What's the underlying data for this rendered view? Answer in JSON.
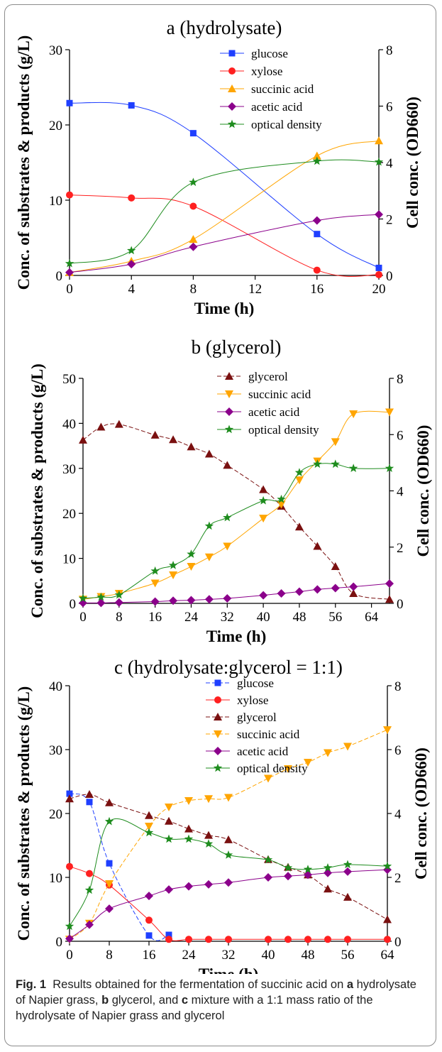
{
  "caption": {
    "label": "Fig. 1",
    "text_parts": [
      "Results obtained for the fermentation of succinic acid on ",
      "a",
      " hydrolysate of Napier grass, ",
      "b",
      " glycerol, and ",
      "c",
      " mixture with a 1:1 mass ratio of the hydrolysate of Napier grass and glycerol"
    ]
  },
  "colors": {
    "glucose": "#1f3fff",
    "xylose": "#ff2020",
    "glycerol": "#7a1010",
    "succinic acid": "#ffa500",
    "acetic acid": "#8b008b",
    "optical density": "#1e8c1e"
  },
  "chart_data": [
    {
      "type": "line",
      "title": "a (hydrolysate)",
      "xlabel": "Time (h)",
      "ylabel": "Conc. of substrates & products (g/L)",
      "y2label": "Cell conc. (OD660)",
      "xlim": [
        0,
        20
      ],
      "ylim": [
        0,
        30
      ],
      "y2lim": [
        0,
        8
      ],
      "xticks": [
        0,
        4,
        8,
        12,
        16,
        20
      ],
      "yticks": [
        0,
        10,
        20,
        30
      ],
      "y2ticks": [
        0,
        2,
        4,
        6,
        8
      ],
      "legend": "top-center",
      "series": [
        {
          "name": "glucose",
          "marker": "square",
          "axis": "left",
          "dashed": false,
          "x": [
            0,
            4,
            8,
            16,
            20
          ],
          "y": [
            22.9,
            22.6,
            18.9,
            5.5,
            1.0
          ]
        },
        {
          "name": "xylose",
          "marker": "circle",
          "axis": "left",
          "dashed": false,
          "x": [
            0,
            4,
            8,
            16,
            20
          ],
          "y": [
            10.7,
            10.3,
            9.2,
            0.7,
            0.1
          ]
        },
        {
          "name": "succinic acid",
          "marker": "triangle-up",
          "axis": "left",
          "dashed": false,
          "x": [
            0,
            4,
            8,
            16,
            20
          ],
          "y": [
            0.4,
            1.9,
            4.8,
            15.9,
            17.9
          ]
        },
        {
          "name": "acetic acid",
          "marker": "diamond",
          "axis": "left",
          "dashed": false,
          "x": [
            0,
            4,
            8,
            16,
            20
          ],
          "y": [
            0.4,
            1.5,
            3.8,
            7.3,
            8.1
          ]
        },
        {
          "name": "optical density",
          "marker": "star",
          "axis": "right",
          "dashed": false,
          "x": [
            0,
            4,
            8,
            16,
            20
          ],
          "y": [
            0.42,
            0.88,
            3.3,
            4.05,
            4.02
          ]
        }
      ]
    },
    {
      "type": "line",
      "title": "b (glycerol)",
      "xlabel": "Time (h)",
      "ylabel": "Conc. of substrates & products (g/L)",
      "y2label": "Cell conc. (OD660)",
      "xlim": [
        0,
        68
      ],
      "ylim": [
        0,
        50
      ],
      "y2lim": [
        0,
        8
      ],
      "xticks": [
        0,
        8,
        16,
        24,
        32,
        40,
        48,
        56,
        64
      ],
      "yticks": [
        0,
        10,
        20,
        30,
        40,
        50
      ],
      "y2ticks": [
        0,
        2,
        4,
        6,
        8
      ],
      "legend": "top-center",
      "series": [
        {
          "name": "glycerol",
          "marker": "triangle-up",
          "axis": "left",
          "dashed": true,
          "x": [
            0,
            4,
            8,
            16,
            20,
            24,
            28,
            32,
            40,
            44,
            48,
            52,
            56,
            60,
            68
          ],
          "y": [
            36.3,
            39.2,
            39.8,
            37.4,
            36.4,
            34.8,
            33.2,
            30.7,
            25.3,
            21.6,
            17.0,
            12.7,
            8.2,
            2.2,
            0.9
          ]
        },
        {
          "name": "succinic acid",
          "marker": "triangle-down",
          "axis": "left",
          "dashed": false,
          "x": [
            0,
            4,
            8,
            16,
            20,
            24,
            28,
            32,
            40,
            44,
            48,
            52,
            56,
            60,
            68
          ],
          "y": [
            0.9,
            1.5,
            2.2,
            4.5,
            6.3,
            8.2,
            10.3,
            12.7,
            18.9,
            22.0,
            27.4,
            31.6,
            35.9,
            42.1,
            42.5
          ]
        },
        {
          "name": "acetic acid",
          "marker": "diamond",
          "axis": "left",
          "dashed": false,
          "x": [
            0,
            4,
            8,
            16,
            20,
            24,
            28,
            32,
            40,
            44,
            48,
            52,
            56,
            60,
            68
          ],
          "y": [
            0.1,
            0.1,
            0.2,
            0.4,
            0.6,
            0.7,
            0.9,
            1.1,
            1.8,
            2.2,
            2.6,
            3.1,
            3.4,
            3.7,
            4.4
          ]
        },
        {
          "name": "optical density",
          "marker": "star",
          "axis": "right",
          "dashed": false,
          "x": [
            0,
            4,
            8,
            16,
            20,
            24,
            28,
            32,
            40,
            44,
            48,
            52,
            56,
            60,
            68
          ],
          "y": [
            0.18,
            0.22,
            0.3,
            1.15,
            1.35,
            1.75,
            2.75,
            3.05,
            3.65,
            3.7,
            4.65,
            4.95,
            4.95,
            4.8,
            4.8
          ]
        }
      ]
    },
    {
      "type": "line",
      "title": "c (hydrolysate:glycerol = 1:1)",
      "xlabel": "Time (h)",
      "ylabel": "Conc. of substrates & products (g/L)",
      "y2label": "Cell conc. (OD660)",
      "xlim": [
        0,
        64
      ],
      "ylim": [
        0,
        40
      ],
      "y2lim": [
        0,
        8
      ],
      "xticks": [
        0,
        8,
        16,
        24,
        32,
        40,
        48,
        56,
        64
      ],
      "yticks": [
        0,
        10,
        20,
        30,
        40
      ],
      "y2ticks": [
        0,
        2,
        4,
        6,
        8
      ],
      "legend": "top-center",
      "series": [
        {
          "name": "glucose",
          "marker": "square",
          "axis": "left",
          "dashed": true,
          "x": [
            0,
            4,
            8,
            16,
            20
          ],
          "y": [
            23.1,
            21.8,
            12.2,
            0.9,
            1.0
          ]
        },
        {
          "name": "xylose",
          "marker": "circle",
          "axis": "left",
          "dashed": false,
          "x": [
            0,
            4,
            8,
            16,
            20,
            24,
            28,
            32,
            40,
            44,
            48,
            52,
            56,
            64
          ],
          "y": [
            11.7,
            10.6,
            8.8,
            3.3,
            0.3,
            0.3,
            0.3,
            0.3,
            0.3,
            0.3,
            0.3,
            0.3,
            0.3,
            0.3
          ]
        },
        {
          "name": "glycerol",
          "marker": "triangle-up",
          "axis": "left",
          "dashed": true,
          "x": [
            0,
            4,
            8,
            16,
            20,
            24,
            28,
            32,
            40,
            44,
            48,
            52,
            56,
            64
          ],
          "y": [
            22.3,
            23.0,
            21.7,
            19.7,
            18.8,
            17.6,
            16.6,
            15.9,
            12.8,
            11.6,
            10.4,
            8.2,
            6.9,
            3.4
          ]
        },
        {
          "name": "succinic acid",
          "marker": "triangle-down",
          "axis": "left",
          "dashed": true,
          "x": [
            0,
            4,
            8,
            16,
            20,
            24,
            28,
            32,
            40,
            44,
            48,
            52,
            56,
            64
          ],
          "y": [
            0.3,
            2.8,
            9.0,
            18.0,
            21.0,
            22.0,
            22.3,
            22.5,
            25.5,
            27.0,
            28.0,
            29.5,
            30.5,
            33.1
          ]
        },
        {
          "name": "acetic acid",
          "marker": "diamond",
          "axis": "left",
          "dashed": false,
          "x": [
            0,
            4,
            8,
            16,
            20,
            24,
            28,
            32,
            40,
            44,
            48,
            52,
            56,
            64
          ],
          "y": [
            0.4,
            2.6,
            5.1,
            7.1,
            8.1,
            8.6,
            8.9,
            9.2,
            10.0,
            10.2,
            10.4,
            10.7,
            10.9,
            11.2
          ]
        },
        {
          "name": "optical density",
          "marker": "star",
          "axis": "right",
          "dashed": false,
          "x": [
            0,
            4,
            8,
            16,
            20,
            24,
            28,
            32,
            40,
            44,
            48,
            52,
            56,
            64
          ],
          "y": [
            0.47,
            1.6,
            3.75,
            3.4,
            3.2,
            3.2,
            3.05,
            2.7,
            2.55,
            2.3,
            2.25,
            2.3,
            2.4,
            2.35
          ]
        }
      ]
    }
  ]
}
